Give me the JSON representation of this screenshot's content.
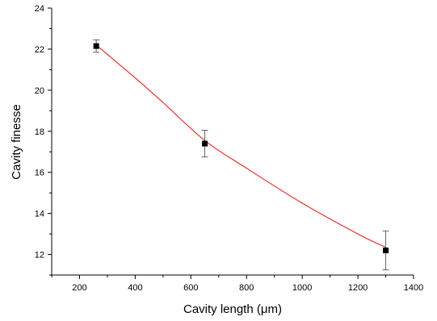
{
  "chart_data": {
    "type": "scatter",
    "xlabel": "Cavity length (μm)",
    "ylabel": "Cavity finesse",
    "xlim": [
      100,
      1400
    ],
    "ylim": [
      11,
      24
    ],
    "x_ticks": [
      200,
      400,
      600,
      800,
      1000,
      1200,
      1400
    ],
    "y_ticks": [
      12,
      14,
      16,
      18,
      20,
      22,
      24
    ],
    "series": [
      {
        "points": [
          {
            "x": 260,
            "y": 22.15,
            "err_low": 21.85,
            "err_high": 22.45
          },
          {
            "x": 650,
            "y": 17.4,
            "err_low": 16.75,
            "err_high": 18.05
          },
          {
            "x": 1300,
            "y": 12.2,
            "err_low": 11.25,
            "err_high": 13.15
          }
        ],
        "marker": "square",
        "color": "#000000"
      }
    ],
    "fit_curve": {
      "color": "#e8231d",
      "points": [
        {
          "x": 260,
          "y": 22.2
        },
        {
          "x": 400,
          "y": 20.6
        },
        {
          "x": 500,
          "y": 19.4
        },
        {
          "x": 650,
          "y": 17.55
        },
        {
          "x": 800,
          "y": 16.2
        },
        {
          "x": 1000,
          "y": 14.5
        },
        {
          "x": 1200,
          "y": 13.0
        },
        {
          "x": 1300,
          "y": 12.35
        }
      ]
    },
    "grid": false,
    "legend": "none"
  }
}
